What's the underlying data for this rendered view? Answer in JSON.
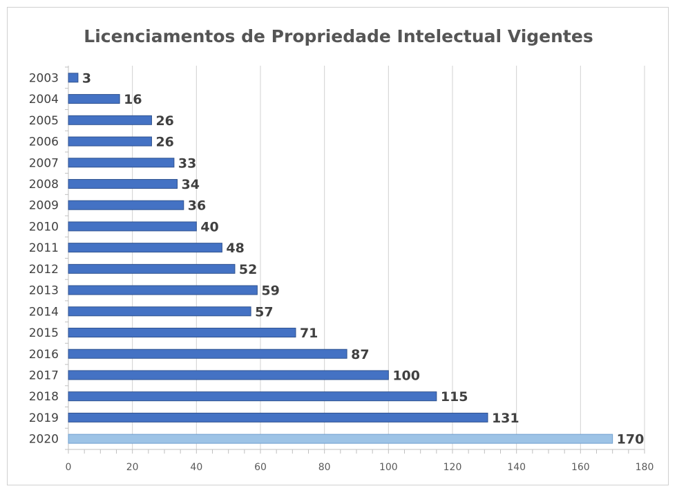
{
  "chart_data": {
    "type": "bar",
    "orientation": "horizontal",
    "title": "Licenciamentos de Propriedade Intelectual Vigentes",
    "categories": [
      "2003",
      "2004",
      "2005",
      "2006",
      "2007",
      "2008",
      "2009",
      "2010",
      "2011",
      "2012",
      "2013",
      "2014",
      "2015",
      "2016",
      "2017",
      "2018",
      "2019",
      "2020"
    ],
    "values": [
      3,
      16,
      26,
      26,
      33,
      34,
      36,
      40,
      48,
      52,
      59,
      57,
      71,
      87,
      100,
      115,
      131,
      170
    ],
    "xlim": [
      0,
      180
    ],
    "xticks": [
      0,
      20,
      40,
      60,
      80,
      100,
      120,
      140,
      160,
      180
    ],
    "grid": true,
    "legend": "none",
    "bar_color": "#4472C4",
    "highlight_color": "#9DC3E6",
    "highlight_category": "2020"
  }
}
